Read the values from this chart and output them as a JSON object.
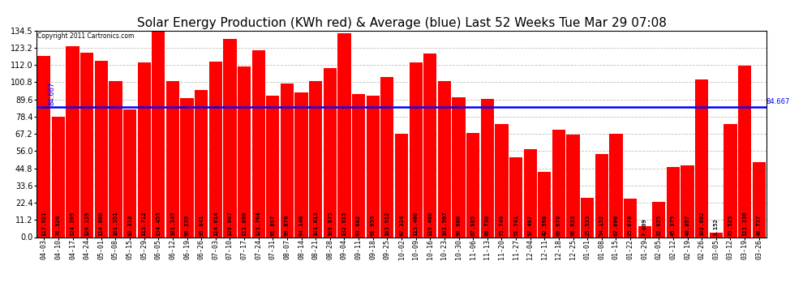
{
  "title": "Solar Energy Production (KWh red) & Average (blue) Last 52 Weeks Tue Mar 29 07:08",
  "copyright": "Copyright 2011 Cartronics.com",
  "bar_color": "#FF0000",
  "average_color": "#0000FF",
  "background_color": "#FFFFFF",
  "grid_color": "#C0C0C0",
  "ylim": [
    0.0,
    134.5
  ],
  "yticks": [
    0.0,
    11.2,
    22.4,
    33.6,
    44.8,
    56.0,
    67.2,
    78.4,
    89.6,
    100.8,
    112.0,
    123.2,
    134.5
  ],
  "average_value": 84.667,
  "bar_labels": [
    "04-03",
    "04-10",
    "04-17",
    "04-24",
    "05-01",
    "05-08",
    "05-15",
    "05-29",
    "06-05",
    "06-12",
    "06-19",
    "06-26",
    "07-03",
    "07-10",
    "07-17",
    "07-24",
    "07-31",
    "08-07",
    "08-14",
    "08-21",
    "08-28",
    "09-04",
    "09-11",
    "09-18",
    "09-25",
    "10-02",
    "10-09",
    "10-16",
    "10-23",
    "10-30",
    "11-06",
    "11-13",
    "11-20",
    "11-27",
    "12-04",
    "12-11",
    "12-18",
    "12-25",
    "01-01",
    "01-08",
    "01-15",
    "01-22",
    "01-29",
    "02-05",
    "02-12",
    "02-19",
    "02-26",
    "03-05",
    "03-12",
    "03-19",
    "03-26"
  ],
  "bar_values": [
    117.921,
    78.526,
    124.205,
    120.139,
    114.6,
    101.551,
    83.318,
    113.712,
    134.453,
    101.347,
    90.239,
    95.841,
    114.014,
    128.907,
    111.096,
    121.764,
    91.897,
    99.876,
    94.146,
    101.613,
    109.875,
    132.615,
    93.082,
    91.955,
    103.912,
    67.324,
    113.46,
    119.46,
    101.567,
    90.9,
    67.985,
    89.73,
    73.749,
    51.741,
    57.467,
    42.598,
    69.978,
    66.933,
    25.533,
    54.152,
    67.09,
    25.078,
    7.009,
    22.925,
    45.375,
    46.897,
    102.692,
    3.152,
    73.525,
    111.33,
    48.737
  ],
  "label_fontsize": 5.5,
  "title_fontsize": 11,
  "value_label_fontsize": 5.2
}
